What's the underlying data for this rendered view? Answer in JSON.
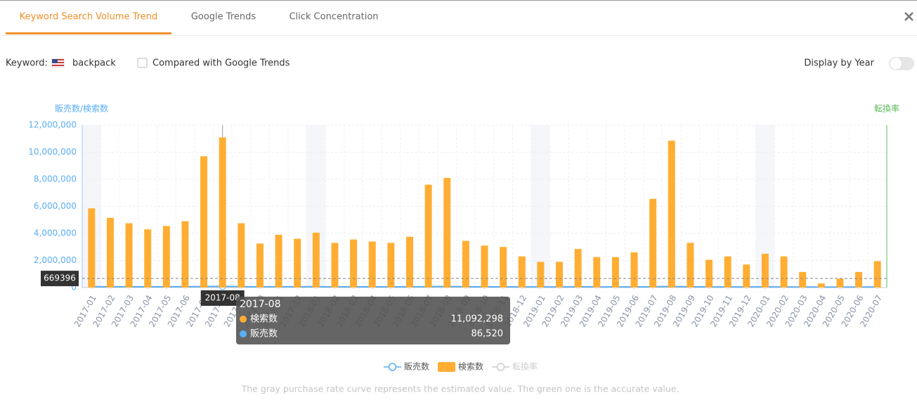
{
  "tabs": [
    "Keyword Search Volume Trend",
    "Google Trends",
    "Click Concentration"
  ],
  "keyword_label": "Keyword:",
  "keyword": "backpack",
  "compare_label": "Compared with Google Trends",
  "display_by_year": "Display by Year",
  "footnote": "The gray purchase rate curve represents the estimated value. The green one is the accurate value.",
  "chart_data": {
    "type": "bar",
    "y_axis_label": "販売数/検索数",
    "y2_axis_label": "転換率",
    "categories": [
      "2017-01",
      "2017-02",
      "2017-03",
      "2017-04",
      "2017-05",
      "2017-06",
      "2017-07",
      "2017-08",
      "2017-09",
      "2017-10",
      "2017-11",
      "2017-12",
      "2018-01",
      "2018-02",
      "2018-03",
      "2018-04",
      "2018-05",
      "2018-06",
      "2018-07",
      "2018-08",
      "2018-09",
      "2018-10",
      "2018-11",
      "2018-12",
      "2019-01",
      "2019-02",
      "2019-03",
      "2019-04",
      "2019-05",
      "2019-06",
      "2019-07",
      "2019-08",
      "2019-09",
      "2019-10",
      "2019-11",
      "2019-12",
      "2020-01",
      "2020-02",
      "2020-03",
      "2020-04",
      "2020-05",
      "2020-06",
      "2020-07"
    ],
    "series": [
      {
        "name": "販売数",
        "type": "line",
        "color": "#5aaef5",
        "values": [
          60000,
          58000,
          56000,
          55000,
          56000,
          58000,
          70000,
          86520,
          62000,
          55000,
          57000,
          56000,
          58000,
          52000,
          55000,
          54000,
          52000,
          55000,
          65000,
          75000,
          56000,
          52000,
          50000,
          48000,
          46000,
          45000,
          50000,
          47000,
          46000,
          48000,
          60000,
          78000,
          52000,
          45000,
          46000,
          43000,
          47000,
          45000,
          38000,
          30000,
          33000,
          38000,
          42000
        ]
      },
      {
        "name": "検索数",
        "type": "bar",
        "color": "#ffae33",
        "values": [
          5850000,
          5150000,
          4750000,
          4300000,
          4550000,
          4900000,
          9700000,
          11092298,
          4750000,
          3250000,
          3900000,
          3600000,
          4050000,
          3300000,
          3550000,
          3400000,
          3300000,
          3750000,
          7600000,
          8100000,
          3450000,
          3100000,
          3000000,
          2300000,
          1900000,
          1900000,
          2850000,
          2250000,
          2250000,
          2600000,
          6550000,
          10850000,
          3300000,
          2050000,
          2300000,
          1700000,
          2500000,
          2300000,
          1150000,
          300000,
          650000,
          1150000,
          1950000
        ]
      },
      {
        "name": "転換率",
        "type": "line",
        "color": "#cccccc",
        "visible": false
      }
    ],
    "ylim": [
      0,
      12000000
    ],
    "yticks": [
      0,
      {
        "value": 2000000,
        "label": "2,000,000"
      },
      {
        "value": 4000000,
        "label": "4,000,000"
      },
      {
        "value": 6000000,
        "label": "6,000,000"
      },
      {
        "value": 8000000,
        "label": "8,000,000"
      },
      {
        "value": 10000000,
        "label": "10,000,000"
      },
      {
        "value": 12000000,
        "label": "12,000,000"
      }
    ],
    "grid": true,
    "crosshair": 669396,
    "tooltip": {
      "items": [
        {
          "label": "11,092,298"
        },
        {
          "label": "86,520"
        }
      ]
    }
  }
}
